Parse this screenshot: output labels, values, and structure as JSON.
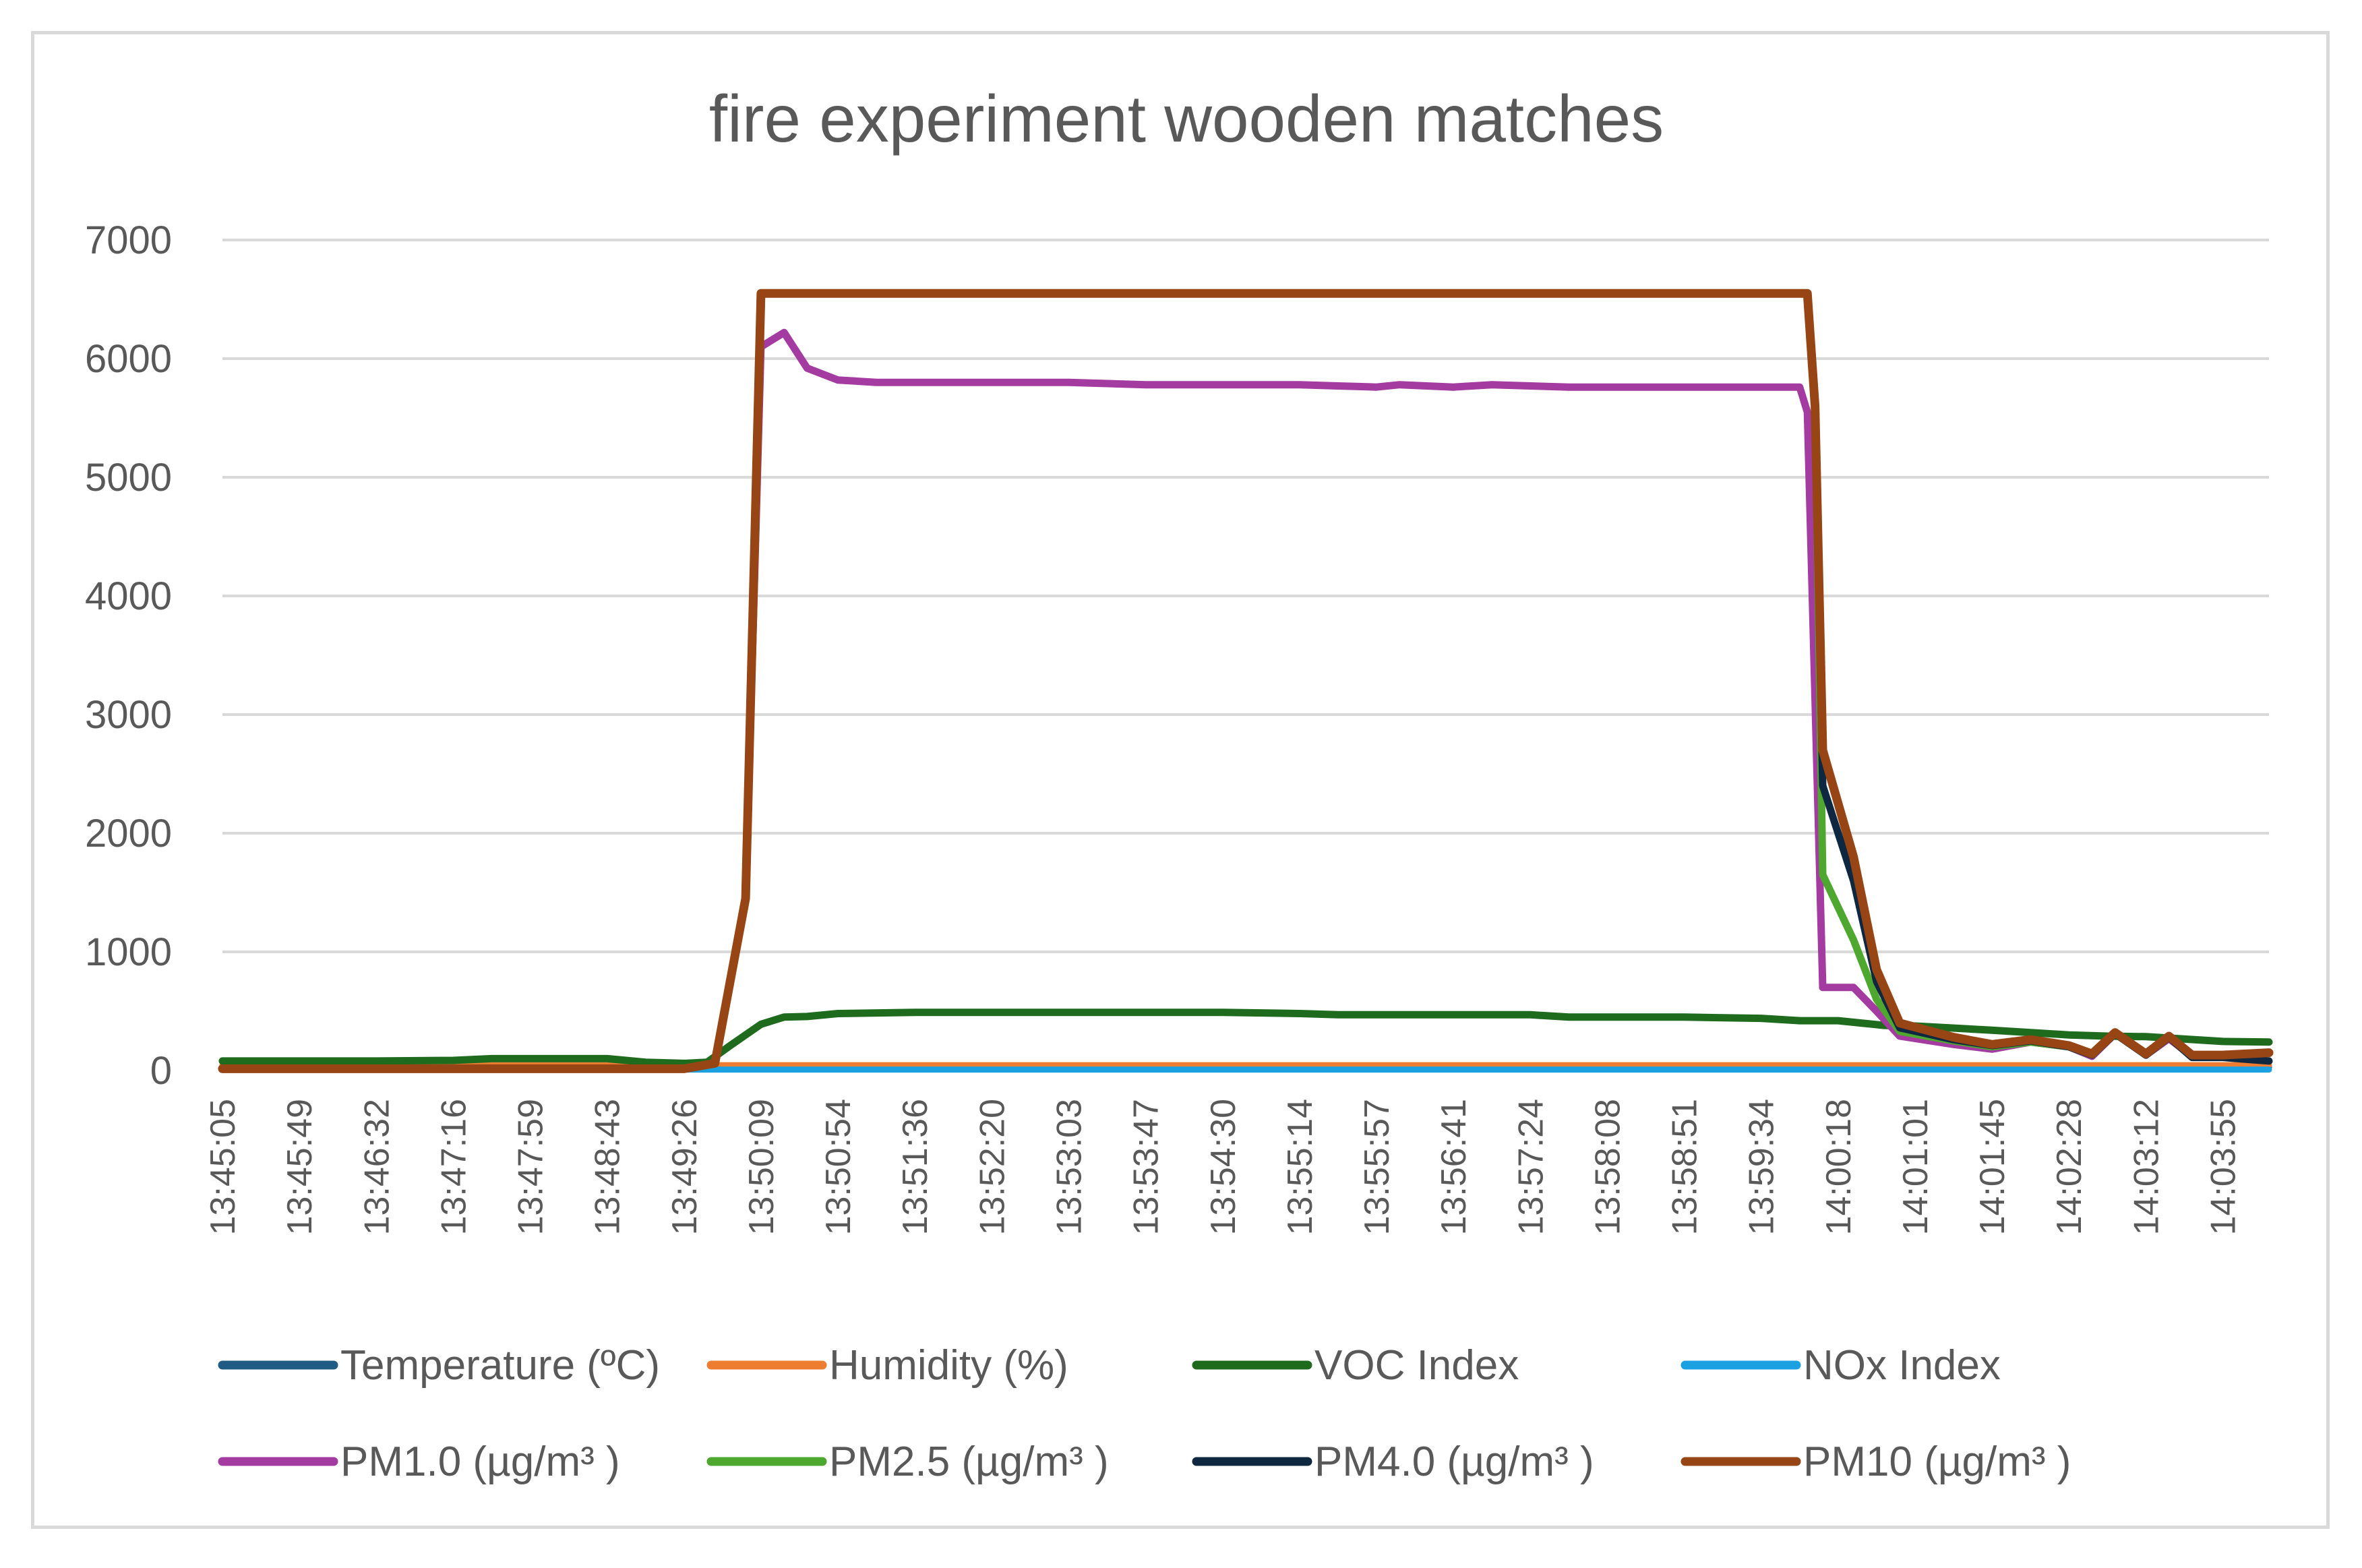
{
  "chart_data": {
    "type": "line",
    "title": "fire experiment wooden matches",
    "xlabel": "",
    "ylabel": "",
    "ylim": [
      0,
      7000
    ],
    "yticks": [
      0,
      1000,
      2000,
      3000,
      4000,
      5000,
      6000,
      7000
    ],
    "grid": "horizontal",
    "legend_position": "bottom",
    "x_tick_labels": [
      "13:45:05",
      "13:45:49",
      "13:46:32",
      "13:47:16",
      "13:47:59",
      "13:48:43",
      "13:49:26",
      "13:50:09",
      "13:50:54",
      "13:51:36",
      "13:52:20",
      "13:53:03",
      "13:53:47",
      "13:54:30",
      "13:55:14",
      "13:55:57",
      "13:56:41",
      "13:57:24",
      "13:58:08",
      "13:58:51",
      "13:59:34",
      "14:00:18",
      "14:01:01",
      "14:01:45",
      "14:02:28",
      "14:03:12",
      "14:03:55"
    ],
    "x_range": [
      0,
      26.6
    ],
    "series": [
      {
        "name": "Temperature (ºC)",
        "color": "#1f5b82",
        "width": 9,
        "points": [
          [
            0,
            28
          ],
          [
            26.6,
            28
          ]
        ]
      },
      {
        "name": "Humidity (%)",
        "color": "#ed7d31",
        "width": 9,
        "points": [
          [
            0,
            45
          ],
          [
            26.6,
            45
          ]
        ]
      },
      {
        "name": "VOC Index",
        "color": "#1e6b1e",
        "width": 11,
        "points": [
          [
            0,
            80
          ],
          [
            1,
            80
          ],
          [
            2,
            80
          ],
          [
            3,
            85
          ],
          [
            3.5,
            100
          ],
          [
            4,
            100
          ],
          [
            5,
            100
          ],
          [
            5.5,
            70
          ],
          [
            6,
            60
          ],
          [
            6.3,
            70
          ],
          [
            6.6,
            210
          ],
          [
            7,
            390
          ],
          [
            7.3,
            450
          ],
          [
            7.6,
            455
          ],
          [
            8,
            480
          ],
          [
            9,
            490
          ],
          [
            10,
            490
          ],
          [
            11,
            490
          ],
          [
            12,
            490
          ],
          [
            13,
            490
          ],
          [
            14,
            480
          ],
          [
            14.5,
            470
          ],
          [
            15,
            470
          ],
          [
            16,
            470
          ],
          [
            17,
            470
          ],
          [
            17.5,
            450
          ],
          [
            18,
            450
          ],
          [
            19,
            450
          ],
          [
            20,
            440
          ],
          [
            20.5,
            420
          ],
          [
            21,
            420
          ],
          [
            21.3,
            400
          ],
          [
            21.6,
            380
          ],
          [
            22,
            375
          ],
          [
            23,
            340
          ],
          [
            24,
            300
          ],
          [
            24.5,
            290
          ],
          [
            25,
            285
          ],
          [
            26,
            245
          ],
          [
            26.6,
            240
          ]
        ]
      },
      {
        "name": "NOx Index",
        "color": "#1ba1e2",
        "width": 9,
        "points": [
          [
            0,
            8
          ],
          [
            26.6,
            8
          ]
        ]
      },
      {
        "name": "PM1.0 (µg/m³ )",
        "color": "#a33ba0",
        "width": 11,
        "points": [
          [
            0,
            15
          ],
          [
            6,
            15
          ],
          [
            6.4,
            60
          ],
          [
            6.8,
            1450
          ],
          [
            7,
            6100
          ],
          [
            7.3,
            6220
          ],
          [
            7.6,
            5920
          ],
          [
            8,
            5820
          ],
          [
            8.5,
            5800
          ],
          [
            10,
            5800
          ],
          [
            11,
            5800
          ],
          [
            12,
            5780
          ],
          [
            14,
            5780
          ],
          [
            14.5,
            5770
          ],
          [
            15,
            5760
          ],
          [
            15.3,
            5780
          ],
          [
            16,
            5760
          ],
          [
            16.5,
            5780
          ],
          [
            17,
            5770
          ],
          [
            17.5,
            5760
          ],
          [
            18,
            5760
          ],
          [
            20,
            5760
          ],
          [
            20.5,
            5760
          ],
          [
            20.6,
            5550
          ],
          [
            20.8,
            700
          ],
          [
            21.2,
            700
          ],
          [
            21.5,
            500
          ],
          [
            21.8,
            290
          ],
          [
            22.5,
            220
          ],
          [
            23,
            180
          ],
          [
            23.5,
            240
          ],
          [
            24,
            200
          ],
          [
            24.3,
            120
          ],
          [
            24.6,
            310
          ],
          [
            25,
            130
          ],
          [
            25.3,
            270
          ],
          [
            25.6,
            120
          ],
          [
            26,
            120
          ],
          [
            26.6,
            150
          ]
        ]
      },
      {
        "name": "PM2.5 (µg/m³ )",
        "color": "#4ea72e",
        "width": 11,
        "points": [
          [
            0,
            15
          ],
          [
            6,
            15
          ],
          [
            6.4,
            60
          ],
          [
            6.8,
            1450
          ],
          [
            7,
            6550
          ],
          [
            20.6,
            6550
          ],
          [
            20.7,
            5600
          ],
          [
            20.8,
            1650
          ],
          [
            21.2,
            1100
          ],
          [
            21.5,
            600
          ],
          [
            21.8,
            330
          ],
          [
            22.5,
            250
          ],
          [
            23,
            200
          ],
          [
            23.5,
            240
          ],
          [
            24,
            200
          ],
          [
            24.3,
            130
          ],
          [
            24.6,
            310
          ],
          [
            25,
            130
          ],
          [
            25.3,
            280
          ],
          [
            25.6,
            120
          ],
          [
            26,
            120
          ],
          [
            26.6,
            150
          ]
        ]
      },
      {
        "name": "PM4.0 (µg/m³ )",
        "color": "#0e2841",
        "width": 11,
        "points": [
          [
            0,
            15
          ],
          [
            6,
            15
          ],
          [
            6.4,
            60
          ],
          [
            6.8,
            1450
          ],
          [
            7,
            6550
          ],
          [
            20.6,
            6550
          ],
          [
            20.7,
            5600
          ],
          [
            20.8,
            2400
          ],
          [
            21.2,
            1600
          ],
          [
            21.5,
            750
          ],
          [
            21.8,
            360
          ],
          [
            22.5,
            260
          ],
          [
            23,
            210
          ],
          [
            23.5,
            250
          ],
          [
            24,
            200
          ],
          [
            24.3,
            130
          ],
          [
            24.6,
            310
          ],
          [
            25,
            130
          ],
          [
            25.3,
            280
          ],
          [
            25.6,
            110
          ],
          [
            26,
            110
          ],
          [
            26.6,
            80
          ]
        ]
      },
      {
        "name": "PM10 (µg/m³ )",
        "color": "#974514",
        "width": 13,
        "points": [
          [
            0,
            15
          ],
          [
            6,
            15
          ],
          [
            6.4,
            60
          ],
          [
            6.8,
            1450
          ],
          [
            7,
            6550
          ],
          [
            20.6,
            6550
          ],
          [
            20.7,
            5600
          ],
          [
            20.8,
            2700
          ],
          [
            21.2,
            1800
          ],
          [
            21.5,
            850
          ],
          [
            21.8,
            400
          ],
          [
            22.5,
            280
          ],
          [
            23,
            220
          ],
          [
            23.5,
            260
          ],
          [
            24,
            210
          ],
          [
            24.3,
            140
          ],
          [
            24.6,
            320
          ],
          [
            25,
            140
          ],
          [
            25.3,
            290
          ],
          [
            25.6,
            130
          ],
          [
            26,
            130
          ],
          [
            26.6,
            150
          ]
        ]
      }
    ]
  }
}
